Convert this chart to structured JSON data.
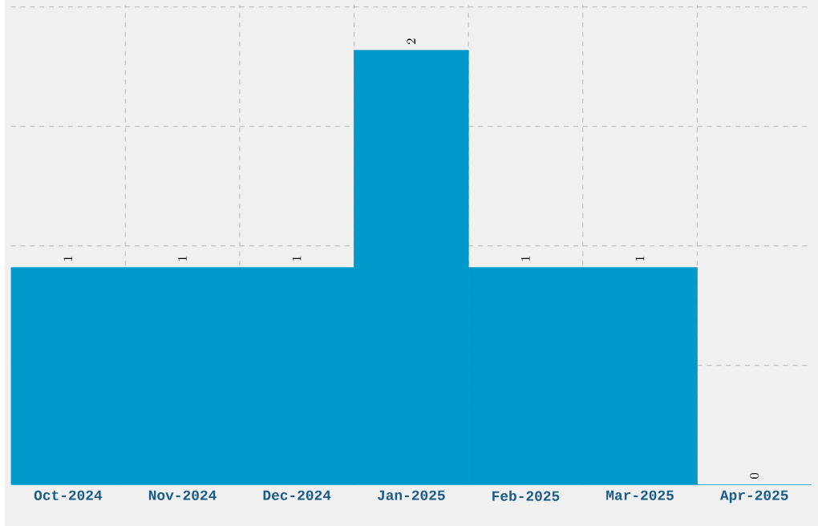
{
  "chart_data": {
    "type": "bar",
    "categories": [
      "Oct-2024",
      "Nov-2024",
      "Dec-2024",
      "Jan-2025",
      "Feb-2025",
      "Mar-2025",
      "Apr-2025"
    ],
    "values": [
      1,
      1,
      1,
      2,
      1,
      1,
      0
    ],
    "color": "#0099cc",
    "ylim": [
      0,
      2.21
    ],
    "yticks": [
      {
        "value": 0.55,
        "label": null
      },
      {
        "value": 1.1,
        "label": null
      },
      {
        "value": 1.65,
        "label": null
      },
      {
        "value": 2.2,
        "label": null
      }
    ],
    "tick_labels": "x",
    "grid": true,
    "data_labels": true
  }
}
